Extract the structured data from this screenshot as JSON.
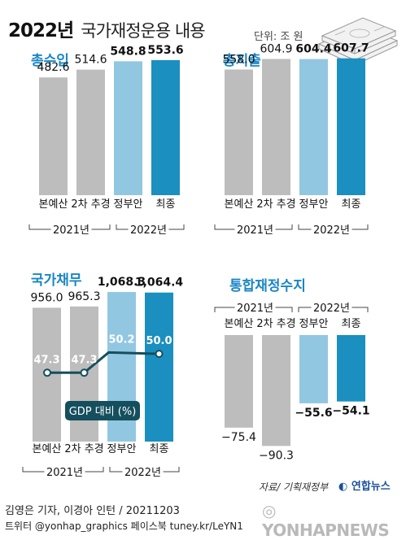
{
  "header": {
    "title": "2022년",
    "subtitle": "국가재정운용 내용",
    "unit": "단위: 조 원"
  },
  "colors": {
    "gray": "#bdbdbd",
    "light_blue": "#92c7e2",
    "dark_blue": "#1b8fbf",
    "teal_line": "#154f5d",
    "heading": "#1a86c5"
  },
  "chart_data": [
    {
      "type": "bar",
      "title": "총수입",
      "categories": [
        "본예산",
        "2차 추경",
        "정부안",
        "최종"
      ],
      "values": [
        482.6,
        514.6,
        548.8,
        553.6
      ],
      "ylim": [
        0,
        600
      ],
      "groups": [
        {
          "label": "2021년",
          "categories": [
            "본예산",
            "2차 추경"
          ]
        },
        {
          "label": "2022년",
          "categories": [
            "정부안",
            "최종"
          ]
        }
      ]
    },
    {
      "type": "bar",
      "title": "총지출",
      "categories": [
        "본예산",
        "2차 추경",
        "정부안",
        "최종"
      ],
      "values": [
        558.0,
        604.9,
        604.4,
        607.7
      ],
      "ylim": [
        0,
        650
      ],
      "groups": [
        {
          "label": "2021년",
          "categories": [
            "본예산",
            "2차 추경"
          ]
        },
        {
          "label": "2022년",
          "categories": [
            "정부안",
            "최종"
          ]
        }
      ]
    },
    {
      "type": "bar",
      "title": "국가채무",
      "categories": [
        "본예산",
        "2차 추경",
        "정부안",
        "최종"
      ],
      "values": [
        956.0,
        965.3,
        1068.3,
        1064.4
      ],
      "value_labels": [
        "956.0",
        "965.3",
        "1,068.3",
        "1,064.4"
      ],
      "ylim": [
        0,
        1150
      ],
      "line_series": {
        "name": "GDP 대비 (%)",
        "values": [
          47.3,
          47.3,
          50.2,
          50.0
        ],
        "value_labels": [
          "47.3",
          "47.3",
          "50.2",
          "50.0"
        ]
      },
      "groups": [
        {
          "label": "2021년",
          "categories": [
            "본예산",
            "2차 추경"
          ]
        },
        {
          "label": "2022년",
          "categories": [
            "정부안",
            "최종"
          ]
        }
      ]
    },
    {
      "type": "bar",
      "title": "통합재정수지",
      "categories": [
        "본예산",
        "2차 추경",
        "정부안",
        "최종"
      ],
      "values": [
        -75.4,
        -90.3,
        -55.6,
        -54.1
      ],
      "value_labels": [
        "−75.4",
        "−90.3",
        "−55.6",
        "−54.1"
      ],
      "ylim": [
        -100,
        0
      ],
      "groups": [
        {
          "label": "2021년",
          "categories": [
            "본예산",
            "2차 추경"
          ]
        },
        {
          "label": "2022년",
          "categories": [
            "정부안",
            "최종"
          ]
        }
      ]
    }
  ],
  "footer": {
    "source": "자료/ 기획재정부",
    "brand": "연합뉴스",
    "credit": "김영은 기자, 이경아 인턴 / 20211203",
    "social": "트위터 @yonhap_graphics  페이스북 tuney.kr/LeYN1",
    "watermark": "YONHAPNEWS"
  }
}
